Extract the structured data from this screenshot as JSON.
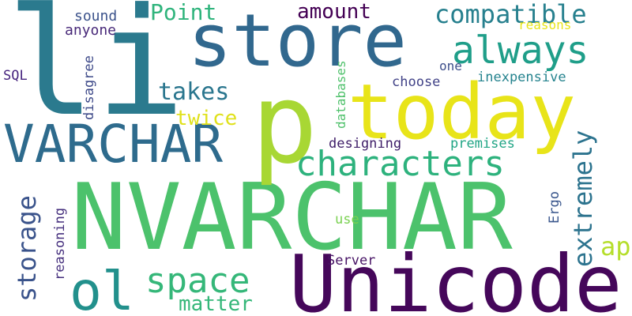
{
  "words": {
    "nvarchar": {
      "text": "NVARCHAR",
      "color": "#4cc26c"
    },
    "li": {
      "text": "li",
      "color": "#2b7a8e"
    },
    "p": {
      "text": "p",
      "color": "#a8d734"
    },
    "unicode": {
      "text": "Unicode",
      "color": "#45075a"
    },
    "today": {
      "text": "today",
      "color": "#e8e419"
    },
    "store": {
      "text": "store",
      "color": "#31688e"
    },
    "varchar": {
      "text": "VARCHAR",
      "color": "#2e6b8d"
    },
    "characters": {
      "text": "characters",
      "color": "#2db27d"
    },
    "always": {
      "text": "always",
      "color": "#1f9e89"
    },
    "ol": {
      "text": "ol",
      "color": "#22908c"
    },
    "space": {
      "text": "space",
      "color": "#35b779"
    },
    "compatible": {
      "text": "compatible",
      "color": "#27808e"
    },
    "applications": {
      "text": "applications",
      "color": "#b5de2b"
    },
    "extremely": {
      "text": "extremely",
      "color": "#2c738e"
    },
    "storage": {
      "text": "storage",
      "color": "#3a538b"
    },
    "takes": {
      "text": "takes",
      "color": "#2a768e"
    },
    "matter": {
      "text": "matter",
      "color": "#35b779"
    },
    "amount": {
      "text": "amount",
      "color": "#440154"
    },
    "point": {
      "text": "Point",
      "color": "#2fb47c"
    },
    "twice": {
      "text": "twice",
      "color": "#e0e11c"
    },
    "sound": {
      "text": "sound",
      "color": "#3b528b"
    },
    "anyone": {
      "text": "anyone",
      "color": "#482979"
    },
    "reasons": {
      "text": "reasons",
      "color": "#e8e419"
    },
    "sql": {
      "text": "SQL",
      "color": "#46247e"
    },
    "disagree": {
      "text": "disagree",
      "color": "#3e4a89"
    },
    "databases": {
      "text": "databases",
      "color": "#4fc16b"
    },
    "one": {
      "text": "one",
      "color": "#3d4e8a"
    },
    "choose": {
      "text": "choose",
      "color": "#414287"
    },
    "inexpensive": {
      "text": "inexpensive",
      "color": "#25838e"
    },
    "designing": {
      "text": "designing",
      "color": "#3e1d68"
    },
    "premises": {
      "text": "premises",
      "color": "#21a585"
    },
    "ergo": {
      "text": "Ergo",
      "color": "#39568c"
    },
    "reasoning": {
      "text": "reasoning",
      "color": "#46307e"
    },
    "use": {
      "text": "use",
      "color": "#7ad151"
    },
    "server": {
      "text": "Server",
      "color": "#471365"
    }
  }
}
